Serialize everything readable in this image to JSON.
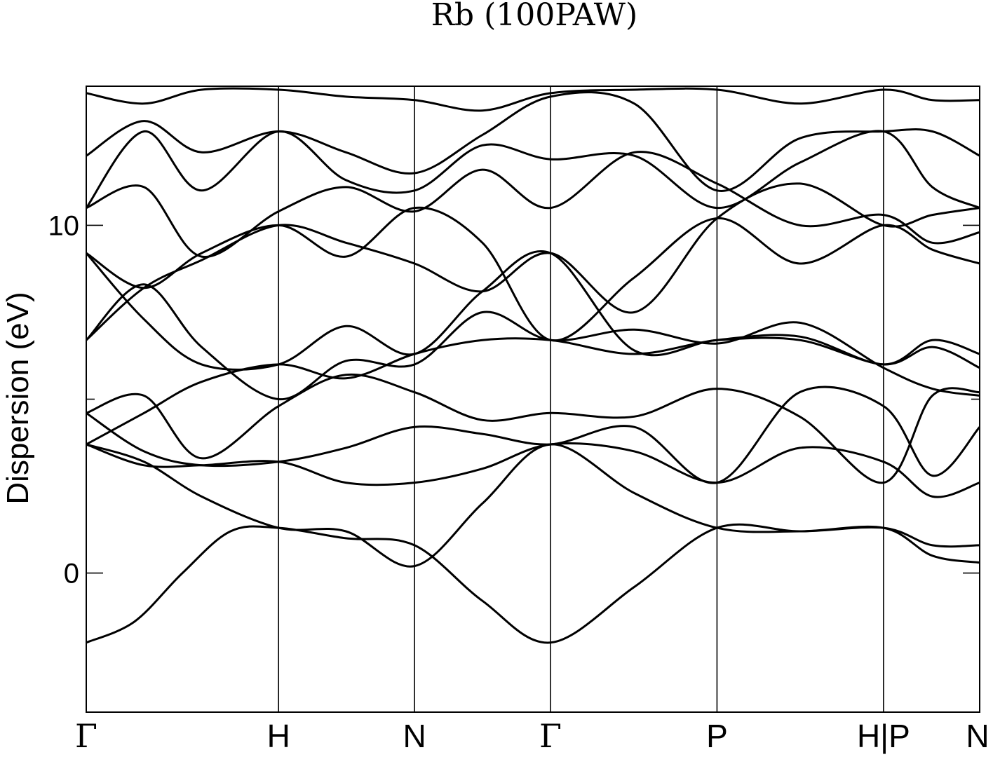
{
  "chart_data": {
    "type": "line",
    "title": "Rb (100PAW)",
    "xlabel": "",
    "ylabel": "Dispersion (eV)",
    "ylim": [
      -4,
      14
    ],
    "yticks": [
      0,
      10
    ],
    "yminor": [
      5
    ],
    "grid": false,
    "legend": "none",
    "kpoints": [
      {
        "label": "Γ",
        "x": 0.0
      },
      {
        "label": "H",
        "x": 1.0
      },
      {
        "label": "N",
        "x": 1.707
      },
      {
        "label": "Γ",
        "x": 2.414
      },
      {
        "label": "P",
        "x": 3.28
      },
      {
        "label": "H|P",
        "x": 4.146
      },
      {
        "label": "N",
        "x": 4.646
      }
    ],
    "series": [
      {
        "x": [
          0,
          0.25,
          0.5,
          0.75,
          1.0,
          1.35,
          1.707,
          2.06,
          2.414,
          2.85,
          3.28,
          3.71,
          4.146,
          4.4,
          4.646
        ],
        "values": [
          -2.0,
          -1.4,
          0.0,
          1.2,
          1.3,
          1.0,
          0.8,
          -0.8,
          -2.0,
          -0.4,
          1.3,
          1.2,
          1.3,
          0.8,
          0.8
        ]
      },
      {
        "x": [
          0,
          0.3,
          0.6,
          1.0,
          1.35,
          1.707,
          2.06,
          2.414,
          2.85,
          3.28,
          3.71,
          4.146,
          4.4,
          4.646
        ],
        "values": [
          3.7,
          3.2,
          2.2,
          1.3,
          1.2,
          0.2,
          2.0,
          3.7,
          2.3,
          1.3,
          1.2,
          1.3,
          0.5,
          0.3
        ]
      },
      {
        "x": [
          0,
          0.3,
          0.6,
          1.0,
          1.35,
          1.707,
          2.06,
          2.414,
          2.85,
          3.28,
          3.71,
          4.146,
          4.4,
          4.646
        ],
        "values": [
          3.7,
          3.1,
          3.1,
          3.2,
          2.6,
          2.6,
          3.0,
          3.7,
          3.5,
          2.6,
          3.6,
          3.2,
          2.2,
          2.6
        ]
      },
      {
        "x": [
          0,
          0.3,
          0.6,
          1.0,
          1.35,
          1.707,
          2.06,
          2.414,
          2.85,
          3.28,
          3.71,
          4.146,
          4.4,
          4.646
        ],
        "values": [
          4.6,
          3.5,
          3.1,
          3.2,
          3.6,
          4.2,
          4.0,
          3.7,
          4.2,
          2.6,
          5.2,
          4.8,
          2.8,
          4.2
        ]
      },
      {
        "x": [
          0,
          0.3,
          0.6,
          1.0,
          1.35,
          1.707,
          2.06,
          2.414,
          2.85,
          3.28,
          3.71,
          4.146,
          4.4,
          4.646
        ],
        "values": [
          4.6,
          5.1,
          3.3,
          4.8,
          5.7,
          5.2,
          4.4,
          4.6,
          4.5,
          5.3,
          4.5,
          2.6,
          5.1,
          5.2
        ]
      },
      {
        "x": [
          0,
          0.3,
          0.6,
          1.0,
          1.35,
          1.707,
          2.06,
          2.414,
          2.85,
          3.28,
          3.71,
          4.146,
          4.4,
          4.646
        ],
        "values": [
          3.7,
          4.6,
          5.5,
          6.0,
          5.6,
          6.3,
          6.7,
          6.7,
          6.3,
          6.7,
          6.8,
          6.0,
          6.7,
          6.3
        ]
      },
      {
        "x": [
          0,
          0.3,
          0.6,
          1.0,
          1.35,
          1.707,
          2.06,
          2.414,
          2.85,
          3.28,
          3.71,
          4.146,
          4.4,
          4.646
        ],
        "values": [
          6.7,
          8.3,
          6.5,
          5.0,
          6.1,
          6.0,
          7.5,
          6.7,
          7.0,
          6.6,
          7.2,
          5.9,
          5.3,
          5.1
        ]
      },
      {
        "x": [
          0,
          0.3,
          0.6,
          1.0,
          1.35,
          1.707,
          2.06,
          2.414,
          2.85,
          3.28,
          3.71,
          4.146,
          4.4,
          4.646
        ],
        "values": [
          9.2,
          7.3,
          6.0,
          6.0,
          7.1,
          6.3,
          8.1,
          9.2,
          6.4,
          6.7,
          6.7,
          6.0,
          6.5,
          5.9
        ]
      },
      {
        "x": [
          0,
          0.3,
          0.6,
          1.0,
          1.35,
          1.707,
          2.06,
          2.414,
          2.85,
          3.28,
          3.71,
          4.146,
          4.4,
          4.646
        ],
        "values": [
          6.7,
          8.2,
          9.0,
          10.0,
          9.5,
          8.9,
          8.1,
          9.2,
          7.5,
          10.2,
          11.2,
          10.0,
          10.3,
          10.5
        ]
      },
      {
        "x": [
          0,
          0.3,
          0.6,
          1.0,
          1.35,
          1.707,
          2.06,
          2.414,
          2.85,
          3.28,
          3.71,
          4.146,
          4.4,
          4.646
        ],
        "values": [
          9.2,
          8.2,
          9.2,
          10.0,
          9.1,
          10.5,
          9.5,
          6.7,
          8.5,
          10.2,
          8.9,
          10.0,
          9.3,
          8.9
        ]
      },
      {
        "x": [
          0,
          0.3,
          0.6,
          1.0,
          1.35,
          1.707,
          2.06,
          2.414,
          2.85,
          3.28,
          3.71,
          4.146,
          4.4,
          4.646
        ],
        "values": [
          10.5,
          11.1,
          9.1,
          10.4,
          11.1,
          10.4,
          11.6,
          10.5,
          12.1,
          11.2,
          10.0,
          10.3,
          9.5,
          9.8
        ]
      },
      {
        "x": [
          0,
          0.3,
          0.6,
          1.0,
          1.35,
          1.707,
          2.06,
          2.414,
          2.85,
          3.28,
          3.71,
          4.146,
          4.4,
          4.646
        ],
        "values": [
          10.5,
          12.7,
          11.0,
          12.7,
          11.3,
          11.0,
          12.3,
          11.9,
          12.0,
          10.5,
          11.8,
          12.7,
          11.1,
          10.5
        ]
      },
      {
        "x": [
          0,
          0.3,
          0.6,
          1.0,
          1.35,
          1.707,
          2.06,
          2.414,
          2.85,
          3.28,
          3.71,
          4.146,
          4.4,
          4.646
        ],
        "values": [
          12.0,
          13.0,
          12.1,
          12.7,
          12.1,
          11.5,
          12.6,
          13.7,
          13.5,
          11.0,
          12.5,
          12.7,
          12.7,
          12.0
        ]
      },
      {
        "x": [
          0,
          0.3,
          0.6,
          1.0,
          1.35,
          1.707,
          2.06,
          2.414,
          2.85,
          3.28,
          3.71,
          4.146,
          4.4,
          4.646
        ],
        "values": [
          13.8,
          13.5,
          13.9,
          13.9,
          13.7,
          13.6,
          13.3,
          13.8,
          13.9,
          13.9,
          13.5,
          13.9,
          13.6,
          13.6
        ]
      }
    ]
  }
}
